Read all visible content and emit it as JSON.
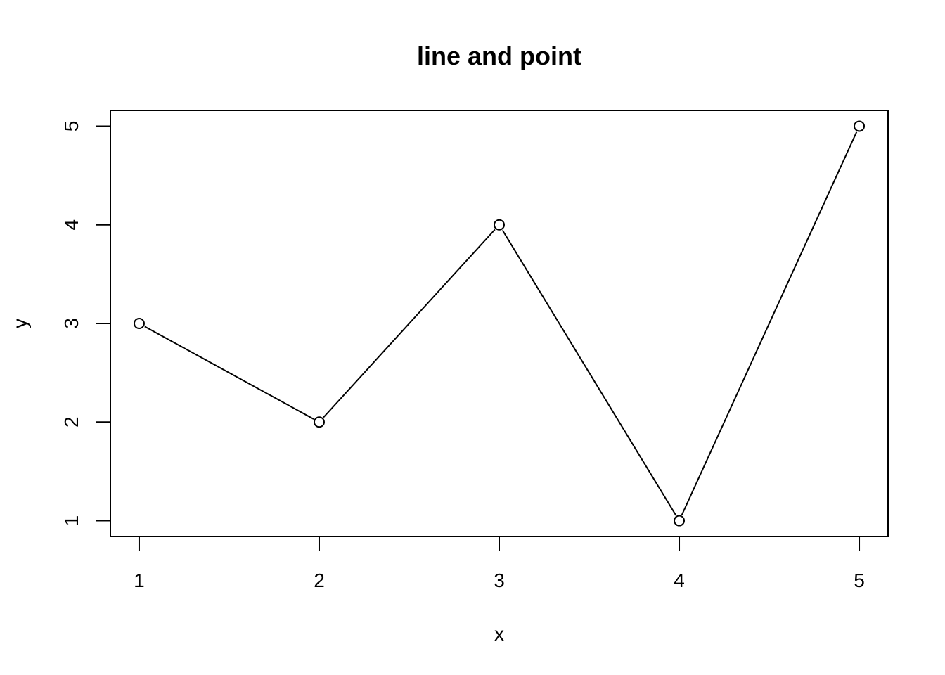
{
  "chart_data": {
    "type": "line",
    "title": "line and point",
    "xlabel": "x",
    "ylabel": "y",
    "x": [
      1,
      2,
      3,
      4,
      5
    ],
    "series": [
      {
        "values": [
          3,
          2,
          4,
          1,
          5
        ]
      }
    ],
    "xlim": [
      0.84,
      5.16
    ],
    "ylim": [
      0.84,
      5.16
    ],
    "x_ticks": [
      1,
      2,
      3,
      4,
      5
    ],
    "y_ticks": [
      1,
      2,
      3,
      4,
      5
    ],
    "x_tick_labels": [
      "1",
      "2",
      "3",
      "4",
      "5"
    ],
    "y_tick_labels": [
      "1",
      "2",
      "3",
      "4",
      "5"
    ],
    "marker": "open-circle",
    "grid": false,
    "legend": "none",
    "colors": {
      "line": "#000000",
      "background": "#ffffff"
    }
  }
}
